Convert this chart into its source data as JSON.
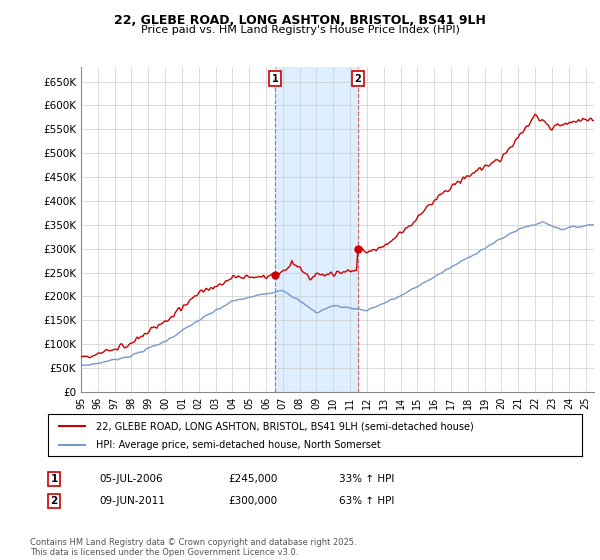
{
  "title_line1": "22, GLEBE ROAD, LONG ASHTON, BRISTOL, BS41 9LH",
  "title_line2": "Price paid vs. HM Land Registry's House Price Index (HPI)",
  "background_color": "#ffffff",
  "plot_bg_color": "#ffffff",
  "grid_color": "#cccccc",
  "house_color": "#cc0000",
  "hpi_color": "#7799cc",
  "shade_color": "#ddeeff",
  "transaction1_date": "05-JUL-2006",
  "transaction1_price": 245000,
  "transaction1_pct": "33%",
  "transaction2_date": "09-JUN-2011",
  "transaction2_price": 300000,
  "transaction2_pct": "63%",
  "legend1": "22, GLEBE ROAD, LONG ASHTON, BRISTOL, BS41 9LH (semi-detached house)",
  "legend2": "HPI: Average price, semi-detached house, North Somerset",
  "footer": "Contains HM Land Registry data © Crown copyright and database right 2025.\nThis data is licensed under the Open Government Licence v3.0.",
  "ylim": [
    0,
    680000
  ],
  "yticks": [
    0,
    50000,
    100000,
    150000,
    200000,
    250000,
    300000,
    350000,
    400000,
    450000,
    500000,
    550000,
    600000,
    650000
  ],
  "xstart_year": 1995,
  "xend_year": 2025,
  "t1_year": 2006.54,
  "t2_year": 2011.44,
  "t1_price": 245000,
  "t2_price": 300000
}
